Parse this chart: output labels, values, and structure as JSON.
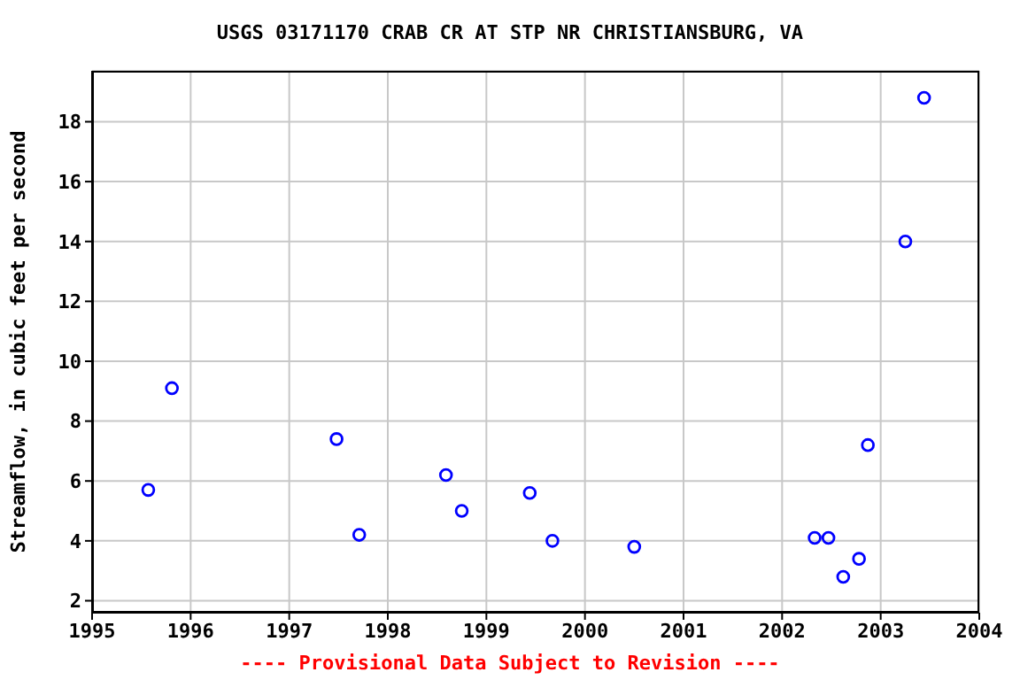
{
  "chart_data": {
    "type": "scatter",
    "title": "USGS 03171170 CRAB CR AT STP NR CHRISTIANSBURG, VA",
    "ylabel": "Streamflow, in cubic feet per second",
    "annotations": [
      "---- Provisional Data Subject to Revision ----"
    ],
    "x": [
      1995.57,
      1995.81,
      1997.48,
      1997.71,
      1998.59,
      1998.75,
      1999.44,
      1999.67,
      2000.5,
      2002.33,
      2002.47,
      2002.62,
      2002.78,
      2002.87,
      2003.25,
      2003.44
    ],
    "series": [
      {
        "color": "#0000ff",
        "values": [
          5.7,
          9.1,
          7.4,
          4.2,
          6.2,
          5.0,
          5.6,
          4.0,
          3.8,
          4.1,
          4.1,
          2.8,
          3.4,
          7.2,
          14.0,
          18.8
        ]
      }
    ],
    "xlim": [
      1995,
      2004
    ],
    "xticks": [
      1995,
      1996,
      1997,
      1998,
      1999,
      2000,
      2001,
      2002,
      2003,
      2004
    ],
    "ylim": [
      1.6,
      19.7
    ],
    "yticks": [
      2,
      4,
      6,
      8,
      10,
      12,
      14,
      16,
      18
    ],
    "grid": true,
    "marker": "circle",
    "legend": false
  }
}
